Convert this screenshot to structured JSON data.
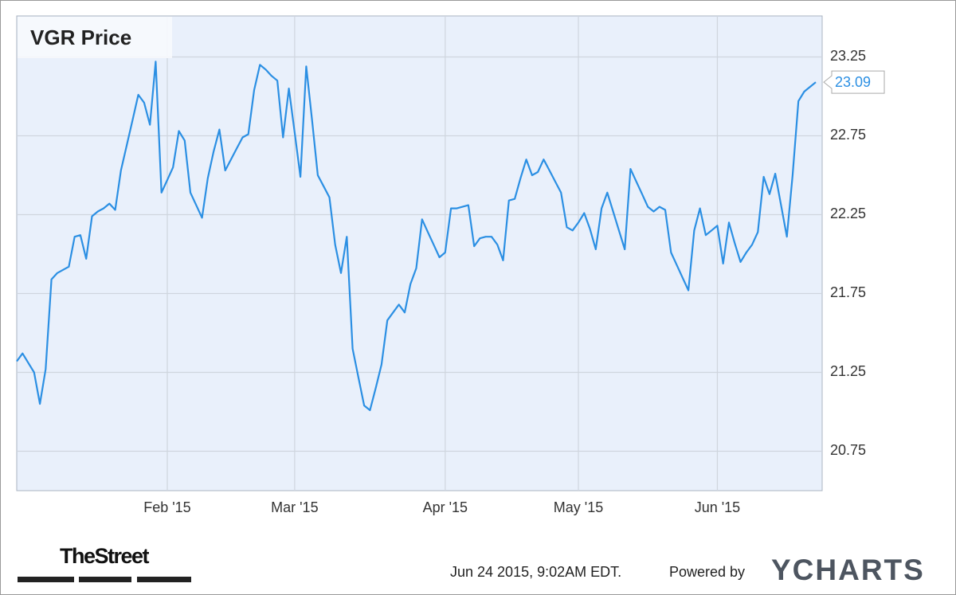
{
  "chart_data": {
    "type": "line",
    "title": "VGR Price",
    "categories": [
      null,
      null,
      null,
      null,
      null,
      null,
      null,
      null,
      null,
      null,
      null,
      null,
      null,
      null,
      null,
      null,
      null,
      null,
      null,
      null,
      null,
      null,
      null,
      null,
      null,
      null,
      "Feb '15",
      null,
      null,
      null,
      null,
      null,
      null,
      null,
      null,
      null,
      null,
      null,
      null,
      null,
      null,
      null,
      null,
      null,
      null,
      null,
      null,
      null,
      "Mar '15",
      null,
      null,
      null,
      null,
      null,
      null,
      null,
      null,
      null,
      null,
      null,
      null,
      null,
      null,
      null,
      null,
      null,
      null,
      null,
      null,
      null,
      null,
      null,
      null,
      null,
      "Apr '15",
      null,
      null,
      null,
      null,
      null,
      null,
      null,
      null,
      null,
      null,
      null,
      null,
      null,
      null,
      null,
      null,
      null,
      null,
      null,
      null,
      null,
      null,
      "May '15",
      null,
      null,
      null,
      null,
      null,
      null,
      null,
      null,
      null,
      null,
      null,
      null,
      null,
      null,
      null,
      null,
      null,
      null,
      null,
      null,
      null,
      null,
      null,
      "Jun '15",
      null,
      null,
      null,
      null,
      null,
      null,
      null,
      null,
      null,
      null,
      null,
      null,
      null,
      null,
      null,
      null,
      null
    ],
    "values": [
      21.32,
      21.37,
      21.31,
      21.25,
      21.05,
      21.27,
      21.84,
      21.88,
      21.9,
      21.92,
      22.11,
      22.12,
      21.97,
      22.24,
      22.27,
      22.29,
      22.32,
      22.28,
      22.53,
      22.69,
      22.85,
      23.01,
      22.96,
      22.82,
      23.22,
      22.39,
      22.47,
      22.55,
      22.78,
      22.72,
      22.39,
      22.31,
      22.23,
      22.48,
      22.65,
      22.79,
      22.53,
      22.6,
      22.67,
      22.74,
      22.76,
      23.04,
      23.2,
      23.17,
      23.13,
      23.1,
      22.74,
      23.05,
      22.77,
      22.49,
      23.19,
      22.85,
      22.5,
      22.43,
      22.36,
      22.06,
      21.88,
      22.11,
      21.4,
      21.22,
      21.04,
      21.01,
      21.15,
      21.3,
      21.58,
      21.63,
      21.68,
      21.63,
      21.81,
      21.91,
      22.22,
      22.14,
      22.06,
      21.98,
      22.01,
      22.29,
      22.29,
      22.3,
      22.31,
      22.05,
      22.1,
      22.11,
      22.11,
      22.06,
      21.96,
      22.34,
      22.35,
      22.48,
      22.6,
      22.5,
      22.52,
      22.6,
      22.53,
      22.46,
      22.39,
      22.17,
      22.15,
      22.2,
      22.26,
      22.16,
      22.03,
      22.29,
      22.39,
      22.27,
      22.15,
      22.03,
      22.54,
      22.46,
      22.38,
      22.3,
      22.27,
      22.3,
      22.28,
      22.01,
      21.93,
      21.85,
      21.77,
      22.15,
      22.29,
      22.12,
      22.15,
      22.18,
      21.94,
      22.2,
      22.07,
      21.95,
      22.01,
      22.06,
      22.14,
      22.49,
      22.38,
      22.51,
      22.31,
      22.11,
      22.5,
      22.97,
      23.03,
      23.06,
      23.09
    ],
    "color": "#2b8fe3",
    "ylim": [
      20.5,
      23.51
    ],
    "yticks": [
      20.75,
      21.25,
      21.75,
      22.25,
      22.75,
      23.25
    ],
    "grid": true,
    "source": "TheStreet",
    "timestamp": "Jun 24 2015, 9:02AM EDT.",
    "powered_by": "Powered by",
    "brand": "YCHARTS"
  }
}
